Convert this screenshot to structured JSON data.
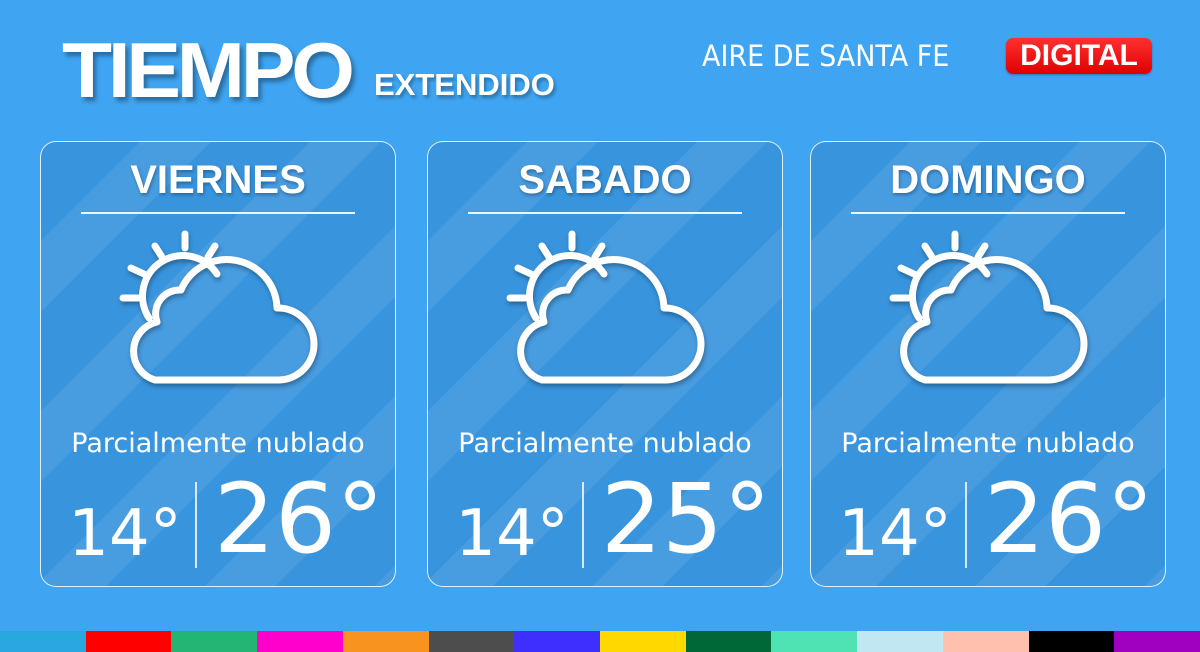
{
  "header": {
    "title": "TIEMPO",
    "subtitle": "EXTENDIDO",
    "brand": "AIRE DE SANTA FE",
    "badge": "DIGITAL"
  },
  "days": [
    {
      "day": "VIERNES",
      "description": "Parcialmente nublado",
      "low": "14°",
      "high": "26°",
      "icon": "partly-cloudy-icon"
    },
    {
      "day": "SABADO",
      "description": "Parcialmente nublado",
      "low": "14°",
      "high": "25°",
      "icon": "partly-cloudy-icon"
    },
    {
      "day": "DOMINGO",
      "description": "Parcialmente nublado",
      "low": "14°",
      "high": "26°",
      "icon": "partly-cloudy-icon"
    }
  ],
  "colors": {
    "background": "#3fa4f1",
    "card": "#3894dd",
    "badge": "#e00000"
  },
  "color_strip": [
    "#29a8e0",
    "#ff0000",
    "#22b573",
    "#ff00cc",
    "#f7931e",
    "#4d4d4d",
    "#3f2fff",
    "#ffd800",
    "#006837",
    "#4fe3b4",
    "#c1e8f2",
    "#ffc1ad",
    "#000000",
    "#a000c0"
  ]
}
